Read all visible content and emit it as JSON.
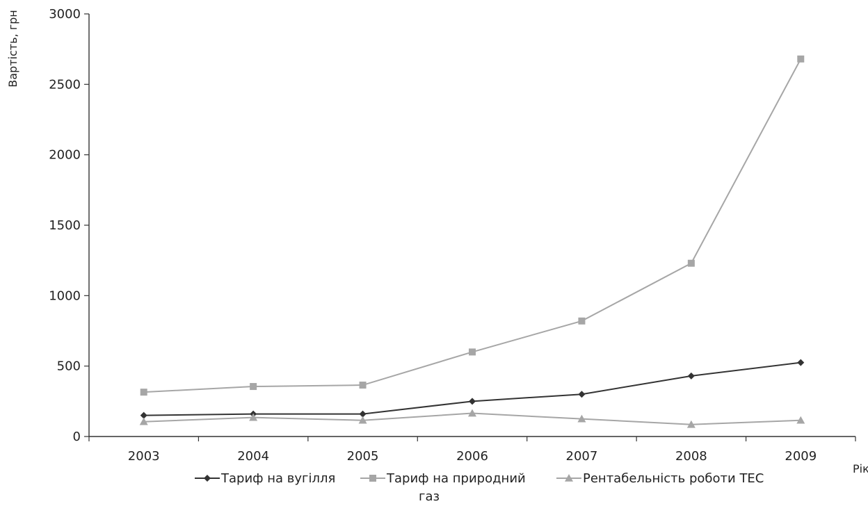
{
  "chart_data": {
    "type": "line",
    "title": "",
    "ylabel": "Вартість, грн",
    "xlabel": "Рік",
    "ylim": [
      0,
      3000
    ],
    "yticks": [
      0,
      500,
      1000,
      1500,
      2000,
      2500,
      3000
    ],
    "categories": [
      "2003",
      "2004",
      "2005",
      "2006",
      "2007",
      "2008",
      "2009"
    ],
    "series": [
      {
        "name": "Тариф на вугілля",
        "color": "#333333",
        "marker": "diamond",
        "values": [
          150,
          160,
          160,
          250,
          300,
          430,
          525
        ]
      },
      {
        "name": "Тариф на природний газ",
        "color": "#a6a6a6",
        "marker": "square",
        "values": [
          315,
          355,
          365,
          600,
          820,
          1230,
          2680
        ]
      },
      {
        "name": "Рентабельність роботи ТЕС",
        "color": "#a6a6a6",
        "marker": "triangle",
        "values": [
          105,
          135,
          115,
          165,
          125,
          85,
          115
        ]
      }
    ],
    "legend": {
      "position": "bottom",
      "label_lines": [
        [
          "Тариф на вугілля"
        ],
        [
          "Тариф на природний",
          "газ"
        ],
        [
          "Рентабельність роботи ТЕС"
        ]
      ]
    },
    "grid": false
  }
}
